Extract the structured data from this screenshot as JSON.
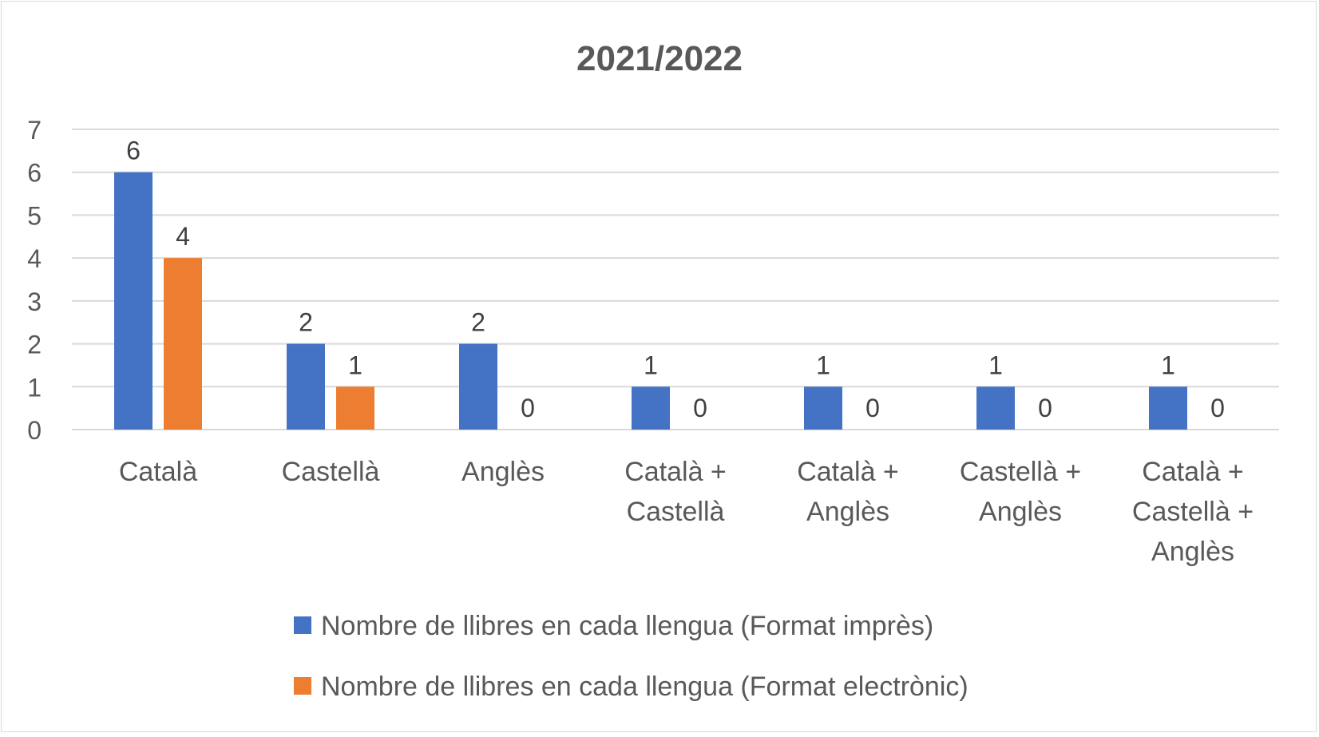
{
  "chart_data": {
    "type": "bar",
    "title": "2021/2022",
    "xlabel": "",
    "ylabel": "",
    "ylim": [
      0,
      7
    ],
    "yticks": [
      "0",
      "1",
      "2",
      "3",
      "4",
      "5",
      "6",
      "7"
    ],
    "grid": true,
    "legend_position": "bottom",
    "categories": [
      [
        "Català"
      ],
      [
        "Castellà"
      ],
      [
        "Anglès"
      ],
      [
        "Català +",
        "Castellà"
      ],
      [
        "Català +",
        "Anglès"
      ],
      [
        "Castellà +",
        "Anglès"
      ],
      [
        "Català +",
        "Castellà +",
        "Anglès"
      ]
    ],
    "series": [
      {
        "name": "Nombre de llibres en cada llengua (Format imprès)",
        "color": "#4472c4",
        "values": [
          6,
          2,
          2,
          1,
          1,
          1,
          1
        ]
      },
      {
        "name": "Nombre de llibres en cada llengua (Format electrònic)",
        "color": "#ed7d31",
        "values": [
          4,
          1,
          0,
          0,
          0,
          0,
          0
        ]
      }
    ],
    "colors": {
      "gridline": "#d9d9d9",
      "text": "#595959",
      "title": "#595959",
      "label": "#404040"
    }
  }
}
